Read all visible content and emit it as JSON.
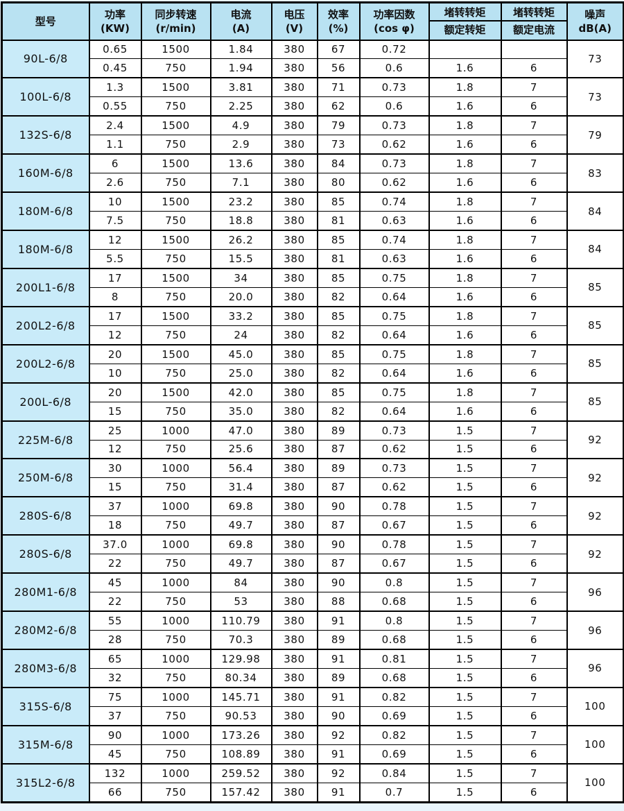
{
  "colors": {
    "page_background": "#e9f5fc",
    "header_background": "#b9e2f2",
    "model_cell_background": "#c9ebf9",
    "border": "#000000",
    "text": "#111111"
  },
  "table": {
    "headers": {
      "model": "型号",
      "power": [
        "功率",
        "(KW)"
      ],
      "speed": [
        "同步转速",
        "(r/min)"
      ],
      "current": [
        "电流",
        "(A)"
      ],
      "voltage": [
        "电压",
        "(V)"
      ],
      "efficiency": [
        "效率",
        "(%)"
      ],
      "power_factor": [
        "功率因数",
        "(cos φ)"
      ],
      "torque_ratio": {
        "numerator": "堵转转矩",
        "denominator": "额定转矩"
      },
      "current_ratio": {
        "numerator": "堵转转矩",
        "denominator": "额定电流"
      },
      "noise": [
        "噪声",
        "dB(A)"
      ]
    },
    "rows": [
      {
        "model": "90L-6/8",
        "noise": "73",
        "sub": [
          [
            "0.65",
            "1500",
            "1.84",
            "380",
            "67",
            "0.72",
            "",
            ""
          ],
          [
            "0.45",
            "750",
            "1.94",
            "380",
            "56",
            "0.6",
            "1.6",
            "6"
          ]
        ]
      },
      {
        "model": "100L-6/8",
        "noise": "73",
        "sub": [
          [
            "1.3",
            "1500",
            "3.81",
            "380",
            "71",
            "0.73",
            "1.8",
            "7"
          ],
          [
            "0.55",
            "750",
            "2.25",
            "380",
            "62",
            "0.6",
            "1.6",
            "6"
          ]
        ]
      },
      {
        "model": "132S-6/8",
        "noise": "79",
        "sub": [
          [
            "2.4",
            "1500",
            "4.9",
            "380",
            "79",
            "0.73",
            "1.8",
            "7"
          ],
          [
            "1.1",
            "750",
            "2.9",
            "380",
            "73",
            "0.62",
            "1.6",
            "6"
          ]
        ]
      },
      {
        "model": "160M-6/8",
        "noise": "83",
        "sub": [
          [
            "6",
            "1500",
            "13.6",
            "380",
            "84",
            "0.73",
            "1.8",
            "7"
          ],
          [
            "2.6",
            "750",
            "7.1",
            "380",
            "80",
            "0.62",
            "1.6",
            "6"
          ]
        ]
      },
      {
        "model": "180M-6/8",
        "noise": "84",
        "sub": [
          [
            "10",
            "1500",
            "23.2",
            "380",
            "85",
            "0.74",
            "1.8",
            "7"
          ],
          [
            "7.5",
            "750",
            "18.8",
            "380",
            "81",
            "0.63",
            "1.6",
            "6"
          ]
        ]
      },
      {
        "model": "180M-6/8",
        "noise": "84",
        "sub": [
          [
            "12",
            "1500",
            "26.2",
            "380",
            "85",
            "0.74",
            "1.8",
            "7"
          ],
          [
            "5.5",
            "750",
            "15.5",
            "380",
            "81",
            "0.63",
            "1.6",
            "6"
          ]
        ]
      },
      {
        "model": "200L1-6/8",
        "noise": "85",
        "sub": [
          [
            "17",
            "1500",
            "34",
            "380",
            "85",
            "0.75",
            "1.8",
            "7"
          ],
          [
            "8",
            "750",
            "20.0",
            "380",
            "82",
            "0.64",
            "1.6",
            "6"
          ]
        ]
      },
      {
        "model": "200L2-6/8",
        "noise": "85",
        "sub": [
          [
            "17",
            "1500",
            "33.2",
            "380",
            "85",
            "0.75",
            "1.8",
            "7"
          ],
          [
            "12",
            "750",
            "24",
            "380",
            "82",
            "0.64",
            "1.6",
            "6"
          ]
        ]
      },
      {
        "model": "200L2-6/8",
        "noise": "85",
        "sub": [
          [
            "20",
            "1500",
            "45.0",
            "380",
            "85",
            "0.75",
            "1.8",
            "7"
          ],
          [
            "10",
            "750",
            "25.0",
            "380",
            "82",
            "0.64",
            "1.6",
            "6"
          ]
        ]
      },
      {
        "model": "200L-6/8",
        "noise": "85",
        "sub": [
          [
            "20",
            "1500",
            "42.0",
            "380",
            "85",
            "0.75",
            "1.8",
            "7"
          ],
          [
            "15",
            "750",
            "35.0",
            "380",
            "82",
            "0.64",
            "1.6",
            "6"
          ]
        ]
      },
      {
        "model": "225M-6/8",
        "noise": "92",
        "sub": [
          [
            "25",
            "1000",
            "47.0",
            "380",
            "89",
            "0.73",
            "1.5",
            "7"
          ],
          [
            "12",
            "750",
            "25.6",
            "380",
            "87",
            "0.62",
            "1.5",
            "6"
          ]
        ]
      },
      {
        "model": "250M-6/8",
        "noise": "92",
        "sub": [
          [
            "30",
            "1000",
            "56.4",
            "380",
            "89",
            "0.73",
            "1.5",
            "7"
          ],
          [
            "15",
            "750",
            "31.4",
            "380",
            "87",
            "0.62",
            "1.5",
            "6"
          ]
        ]
      },
      {
        "model": "280S-6/8",
        "noise": "92",
        "sub": [
          [
            "37",
            "1000",
            "69.8",
            "380",
            "90",
            "0.78",
            "1.5",
            "7"
          ],
          [
            "18",
            "750",
            "49.7",
            "380",
            "87",
            "0.67",
            "1.5",
            "6"
          ]
        ]
      },
      {
        "model": "280S-6/8",
        "noise": "92",
        "sub": [
          [
            "37.0",
            "1000",
            "69.8",
            "380",
            "90",
            "0.78",
            "1.5",
            "7"
          ],
          [
            "22",
            "750",
            "49.7",
            "380",
            "87",
            "0.67",
            "1.5",
            "6"
          ]
        ]
      },
      {
        "model": "280M1-6/8",
        "noise": "96",
        "sub": [
          [
            "45",
            "1000",
            "84",
            "380",
            "90",
            "0.8",
            "1.5",
            "7"
          ],
          [
            "22",
            "750",
            "53",
            "380",
            "88",
            "0.68",
            "1.5",
            "6"
          ]
        ]
      },
      {
        "model": "280M2-6/8",
        "noise": "96",
        "sub": [
          [
            "55",
            "1000",
            "110.79",
            "380",
            "91",
            "0.8",
            "1.5",
            "7"
          ],
          [
            "28",
            "750",
            "70.3",
            "380",
            "89",
            "0.68",
            "1.5",
            "6"
          ]
        ]
      },
      {
        "model": "280M3-6/8",
        "noise": "96",
        "sub": [
          [
            "65",
            "1000",
            "129.98",
            "380",
            "91",
            "0.81",
            "1.5",
            "7"
          ],
          [
            "32",
            "750",
            "80.34",
            "380",
            "89",
            "0.68",
            "1.5",
            "6"
          ]
        ]
      },
      {
        "model": "315S-6/8",
        "noise": "100",
        "sub": [
          [
            "75",
            "1000",
            "145.71",
            "380",
            "91",
            "0.82",
            "1.5",
            "7"
          ],
          [
            "37",
            "750",
            "90.53",
            "380",
            "90",
            "0.69",
            "1.5",
            "6"
          ]
        ]
      },
      {
        "model": "315M-6/8",
        "noise": "100",
        "sub": [
          [
            "90",
            "1000",
            "173.26",
            "380",
            "92",
            "0.82",
            "1.5",
            "7"
          ],
          [
            "45",
            "750",
            "108.89",
            "380",
            "91",
            "0.69",
            "1.5",
            "6"
          ]
        ]
      },
      {
        "model": "315L2-6/8",
        "noise": "100",
        "sub": [
          [
            "132",
            "1000",
            "259.52",
            "380",
            "92",
            "0.84",
            "1.5",
            "7"
          ],
          [
            "66",
            "750",
            "157.42",
            "380",
            "91",
            "0.7",
            "1.5",
            "6"
          ]
        ]
      }
    ]
  }
}
